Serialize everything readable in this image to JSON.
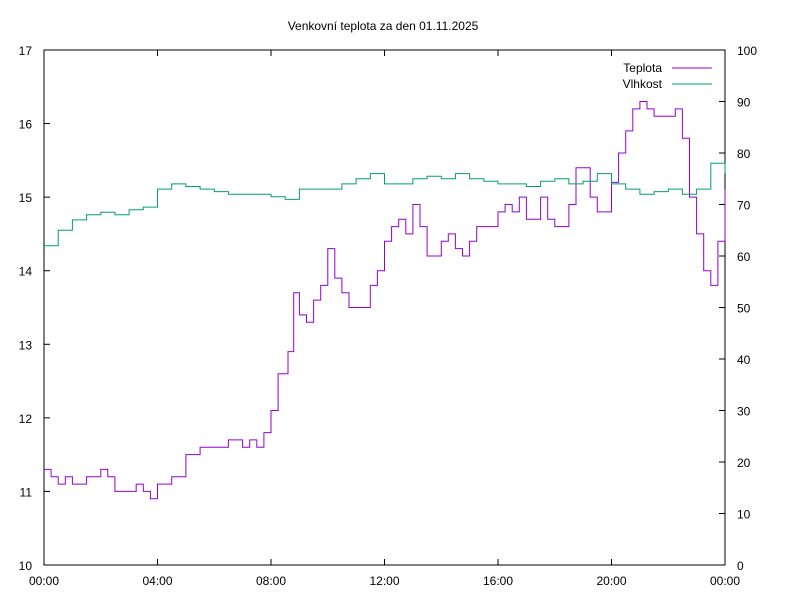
{
  "chart_data": {
    "type": "line",
    "title": "Venkovní teplota za den 01.11.2025",
    "xlabel": "",
    "ylabel": "",
    "y2label": "",
    "x_tick_labels": [
      "00:00",
      "04:00",
      "08:00",
      "12:00",
      "16:00",
      "20:00",
      "00:00"
    ],
    "x_range_hours": [
      0,
      24
    ],
    "y_left": {
      "ylim": [
        10,
        17
      ],
      "ticks": [
        10,
        11,
        12,
        13,
        14,
        15,
        16,
        17
      ]
    },
    "y_right": {
      "ylim": [
        0,
        100
      ],
      "ticks": [
        0,
        10,
        20,
        30,
        40,
        50,
        60,
        70,
        80,
        90,
        100
      ]
    },
    "grid": false,
    "legend_position": "top-right",
    "colors": {
      "teplota": "#9400d3",
      "vlhkost": "#009e73"
    },
    "series": [
      {
        "name": "Teplota",
        "axis": "left",
        "color": "#9400d3",
        "x_hours": [
          0,
          0.25,
          0.5,
          0.75,
          1,
          1.5,
          2,
          2.25,
          2.5,
          3,
          3.25,
          3.5,
          3.75,
          4,
          4.5,
          5,
          5.5,
          6,
          6.5,
          7,
          7.25,
          7.5,
          7.75,
          8,
          8.25,
          8.5,
          8.6,
          8.8,
          9,
          9.25,
          9.5,
          9.75,
          10,
          10.25,
          10.5,
          10.75,
          11,
          11.5,
          11.75,
          12,
          12.25,
          12.5,
          12.75,
          13,
          13.25,
          13.5,
          14,
          14.25,
          14.5,
          14.75,
          15,
          15.25,
          15.5,
          16,
          16.25,
          16.5,
          16.75,
          17,
          17.5,
          17.75,
          18,
          18.25,
          18.5,
          18.75,
          19,
          19.25,
          19.5,
          20,
          20.25,
          20.5,
          20.75,
          21,
          21.25,
          21.5,
          22,
          22.25,
          22.5,
          22.75,
          23,
          23.25,
          23.5,
          23.75,
          24
        ],
        "values": [
          11.3,
          11.2,
          11.1,
          11.2,
          11.1,
          11.2,
          11.3,
          11.2,
          11.0,
          11.0,
          11.1,
          11.0,
          10.9,
          11.1,
          11.2,
          11.5,
          11.6,
          11.6,
          11.7,
          11.6,
          11.7,
          11.6,
          11.8,
          12.1,
          12.6,
          12.6,
          12.9,
          13.7,
          13.4,
          13.3,
          13.6,
          13.8,
          14.3,
          13.9,
          13.7,
          13.5,
          13.5,
          13.8,
          14.0,
          14.4,
          14.6,
          14.7,
          14.5,
          14.9,
          14.6,
          14.2,
          14.4,
          14.5,
          14.3,
          14.2,
          14.4,
          14.6,
          14.6,
          14.8,
          14.9,
          14.8,
          15.0,
          14.7,
          15.0,
          14.7,
          14.6,
          14.6,
          14.9,
          15.4,
          15.4,
          15.0,
          14.8,
          15.2,
          15.6,
          15.9,
          16.2,
          16.3,
          16.2,
          16.1,
          16.1,
          16.2,
          15.8,
          15.0,
          14.5,
          14.0,
          13.8,
          14.4,
          15.1
        ]
      },
      {
        "name": "Vlhkost",
        "axis": "right",
        "color": "#009e73",
        "x_hours": [
          0,
          0.5,
          1,
          1.5,
          2,
          2.5,
          3,
          3.5,
          4,
          4.5,
          5,
          5.5,
          6,
          6.5,
          7,
          7.5,
          8,
          8.5,
          9,
          9.5,
          10,
          10.5,
          11,
          11.5,
          12,
          12.5,
          13,
          13.5,
          14,
          14.5,
          15,
          15.5,
          16,
          16.5,
          17,
          17.5,
          18,
          18.5,
          19,
          19.5,
          20,
          20.5,
          21,
          21.5,
          22,
          22.5,
          23,
          23.5,
          24
        ],
        "values": [
          62,
          65,
          67,
          68,
          68.5,
          68,
          69,
          69.5,
          73,
          74,
          73.5,
          73,
          72.5,
          72,
          72,
          72,
          71.5,
          71,
          73,
          73,
          73,
          74,
          75,
          76,
          74,
          74,
          75,
          75.5,
          75,
          76,
          75,
          74.5,
          74,
          74,
          73.5,
          74.5,
          75,
          74,
          74.5,
          76,
          74,
          73,
          72,
          72.5,
          73,
          72,
          73,
          78,
          76
        ]
      }
    ]
  }
}
